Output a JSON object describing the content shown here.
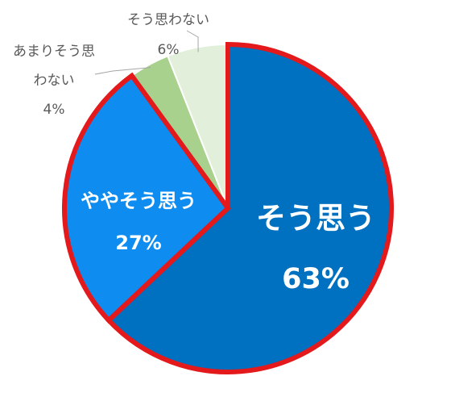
{
  "chart_data": {
    "type": "pie",
    "title": "",
    "slices": [
      {
        "label": "そう思う",
        "value": 63,
        "value_text": "63%",
        "color": "#0070C0"
      },
      {
        "label": "ややそう思う",
        "value": 27,
        "value_text": "27%",
        "color": "#0F8CF0"
      },
      {
        "label_lines": [
          "あまりそう思",
          "わない"
        ],
        "value": 4,
        "value_text": "4%",
        "color": "#A9D18E"
      },
      {
        "label": "そう思わない",
        "value": 6,
        "value_text": "6%",
        "color": "#E2EFDA"
      }
    ],
    "highlight_color": "#E3191C",
    "highlighted_slices": [
      "そう思う",
      "ややそう思う"
    ],
    "start_angle_deg": 0,
    "direction": "clockwise",
    "legend": "none"
  }
}
